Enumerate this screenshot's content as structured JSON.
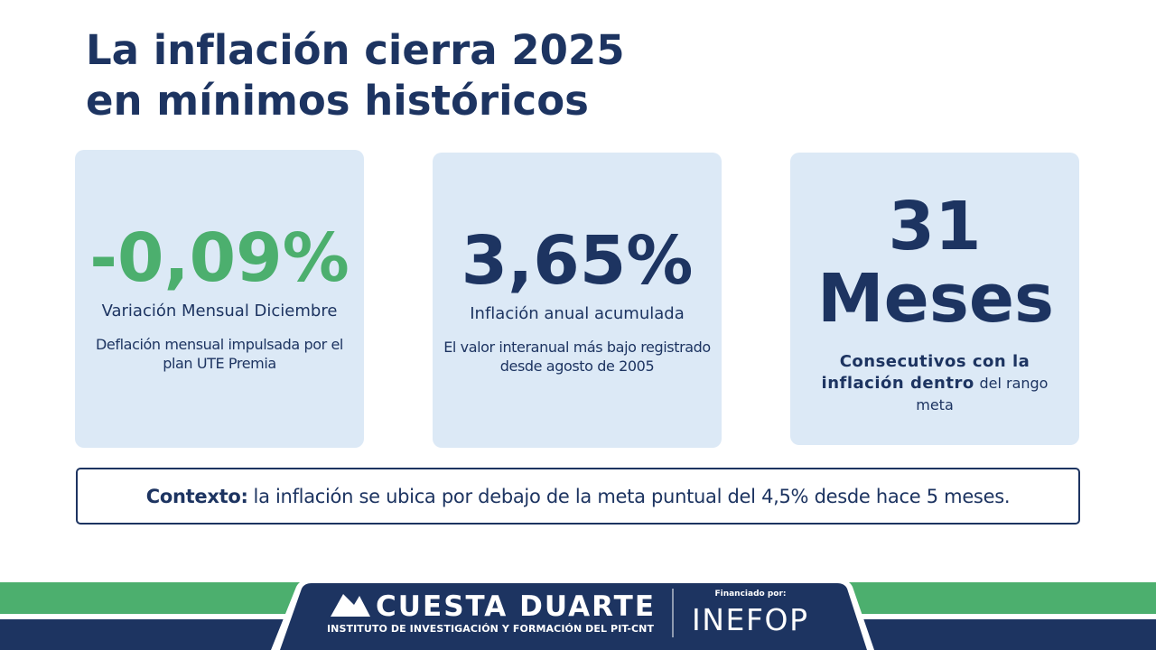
{
  "header": {
    "title": "La inflación cierra 2025 en mínimos históricos"
  },
  "cards": [
    {
      "value": "-0,09%",
      "label": "Variación Mensual Diciembre",
      "description": "Deflación mensual impulsada por el plan UTE Premia"
    },
    {
      "value": "3,65%",
      "label": "Inflación anual acumulada",
      "description": "El valor interanual más bajo registrado desde agosto de 2005"
    },
    {
      "value": "31",
      "unit": "Meses",
      "label": "Consecutivos con la inflación dentro",
      "description": "del rango meta"
    }
  ],
  "context": {
    "lead": "Contexto:",
    "text": "la inflación se ubica por debajo de la meta puntual del 4,5% desde hace 5 meses."
  },
  "footer": {
    "brand": "CUESTA DUARTE",
    "brand_subtitle": "INSTITUTO DE INVESTIGACIÓN Y FORMACIÓN DEL PIT-CNT",
    "funded_by": "Financiado por:",
    "funder": "INEFOP"
  }
}
